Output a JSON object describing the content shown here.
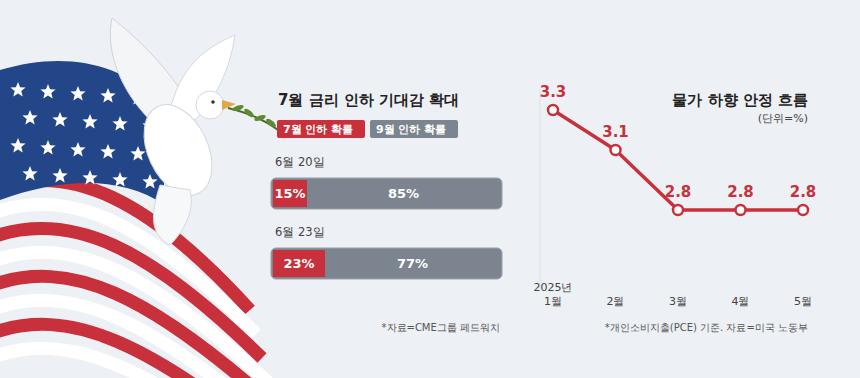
{
  "chart_data": [
    {
      "type": "bar",
      "orientation": "horizontal",
      "stacked": true,
      "title": "7월 금리 인하 기대감 확대",
      "categories": [
        "6월 20일",
        "6월 23일"
      ],
      "series": [
        {
          "name": "7월 인하 확률",
          "color": "#c8313c",
          "values": [
            15,
            23
          ],
          "value_labels": [
            "15%",
            "23%"
          ]
        },
        {
          "name": "9월 인하 확률",
          "color": "#7c858f",
          "values": [
            85,
            77
          ],
          "value_labels": [
            "85%",
            "77%"
          ]
        }
      ],
      "xlim": [
        0,
        100
      ],
      "tick_labels": false,
      "data_labels": true,
      "legend": "top-left",
      "annotations": [
        "*자료=CME그룹 페드워치"
      ]
    },
    {
      "type": "line",
      "title": "물가 하향 안정 흐름",
      "subtitle": "(단위=%)",
      "categories": [
        "2025년 1월",
        "2월",
        "3월",
        "4월",
        "5월"
      ],
      "values": [
        3.3,
        3.1,
        2.8,
        2.8,
        2.8
      ],
      "color": "#c8313c",
      "marker": "circle",
      "ylim": [
        2.4,
        3.4
      ],
      "tick_labels": "x",
      "data_labels": true,
      "annotations": [
        "*개인소비지출(PCE) 기준. 자료=미국 노동부"
      ]
    }
  ]
}
